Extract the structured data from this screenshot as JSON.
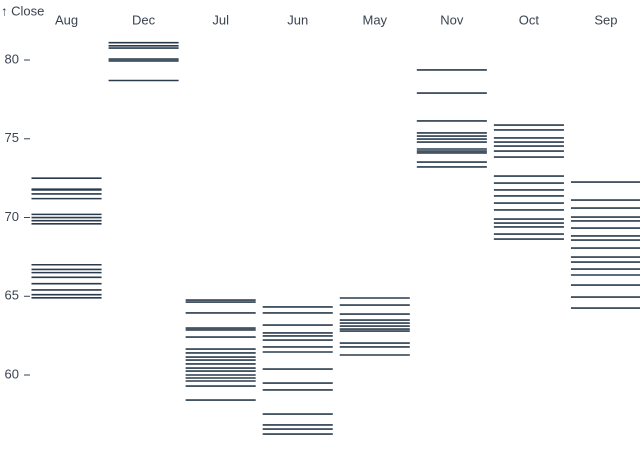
{
  "chart_data": {
    "type": "tick",
    "y_label": "↑ Close",
    "categories": [
      "Aug",
      "Dec",
      "Jul",
      "Jun",
      "May",
      "Nov",
      "Oct",
      "Sep"
    ],
    "color": "#2a3b4d",
    "values": [
      [
        72.5,
        71.8,
        71.75,
        71.5,
        71.2,
        70.2,
        70.0,
        69.8,
        69.6,
        67.0,
        66.7,
        66.5,
        66.2,
        65.8,
        65.4,
        65.1,
        64.9
      ],
      [
        81.1,
        80.9,
        80.76,
        80.06,
        79.94,
        78.7
      ],
      [
        64.76,
        64.63,
        63.94,
        62.98,
        62.86,
        62.41,
        61.65,
        61.4,
        61.14,
        60.95,
        60.7,
        60.44,
        60.25,
        60.0,
        59.81,
        59.62,
        59.3,
        58.41
      ],
      [
        64.32,
        63.94,
        63.17,
        62.67,
        62.48,
        62.22,
        61.78,
        61.46,
        60.38,
        59.49,
        59.05,
        57.52,
        56.83,
        56.57,
        56.25
      ],
      [
        64.89,
        64.44,
        63.87,
        63.49,
        63.3,
        63.11,
        62.92,
        62.79,
        62.03,
        61.78,
        61.27
      ],
      [
        79.37,
        77.9,
        76.13,
        75.37,
        75.17,
        74.98,
        74.79,
        74.35,
        74.22,
        74.1,
        73.52,
        73.21
      ],
      [
        75.87,
        75.56,
        75.05,
        74.79,
        74.54,
        74.22,
        73.84,
        72.63,
        72.19,
        71.75,
        71.37,
        70.92,
        70.48,
        69.9,
        69.65,
        69.4,
        68.95,
        68.63
      ],
      [
        72.25,
        71.11,
        70.6,
        70.03,
        69.78,
        69.33,
        68.83,
        68.57,
        68.06,
        67.49,
        67.17,
        66.73,
        66.35,
        65.71,
        64.95,
        64.25
      ]
    ],
    "ylim": [
      56,
      81.5
    ],
    "yticks": [
      60,
      65,
      70,
      75,
      80
    ]
  }
}
